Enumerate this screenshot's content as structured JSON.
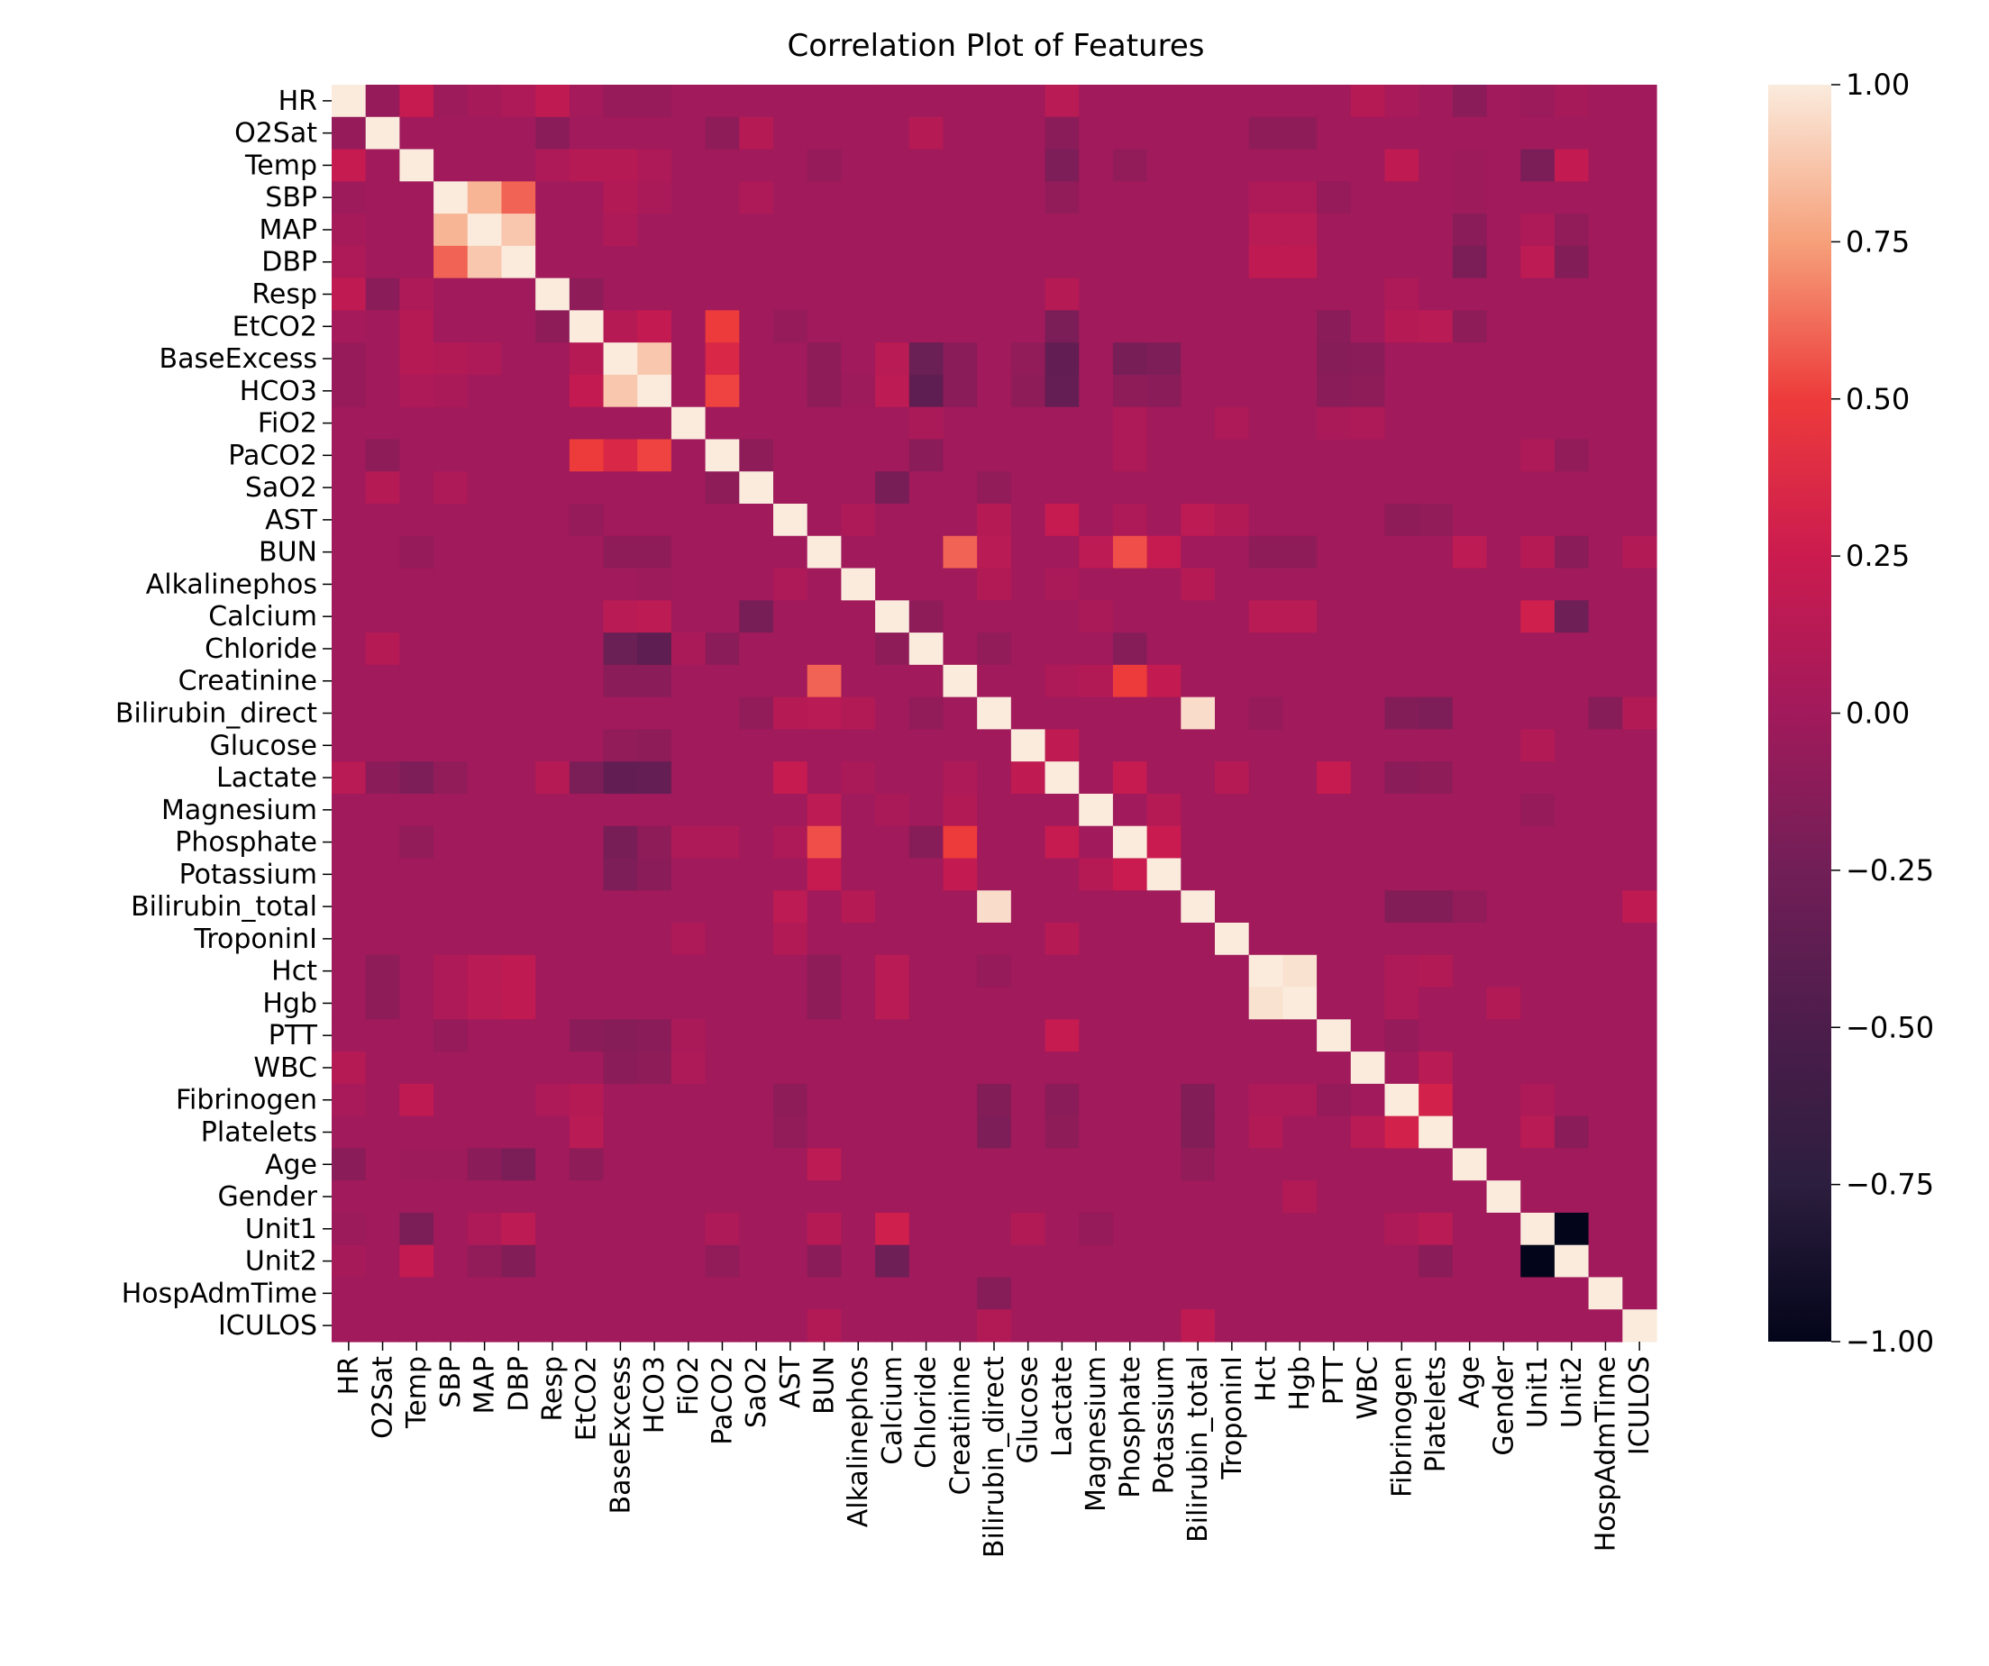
{
  "chart_data": {
    "type": "heatmap",
    "title": "Correlation Plot of Features",
    "labels": [
      "HR",
      "O2Sat",
      "Temp",
      "SBP",
      "MAP",
      "DBP",
      "Resp",
      "EtCO2",
      "BaseExcess",
      "HCO3",
      "FiO2",
      "PaCO2",
      "SaO2",
      "AST",
      "BUN",
      "Alkalinephos",
      "Calcium",
      "Chloride",
      "Creatinine",
      "Bilirubin_direct",
      "Glucose",
      "Lactate",
      "Magnesium",
      "Phosphate",
      "Potassium",
      "Bilirubin_total",
      "TroponinI",
      "Hct",
      "Hgb",
      "PTT",
      "WBC",
      "Fibrinogen",
      "Platelets",
      "Age",
      "Gender",
      "Unit1",
      "Unit2",
      "HospAdmTime",
      "ICULOS"
    ],
    "vmin": -1.0,
    "vmax": 1.0,
    "colorbar_ticks": [
      1.0,
      0.75,
      0.5,
      0.25,
      0.0,
      -0.25,
      -0.5,
      -0.75,
      -1.0
    ],
    "colorbar_tick_labels": [
      "1.00",
      "0.75",
      "0.50",
      "0.25",
      "0.00",
      "−0.25",
      "−0.50",
      "−0.75",
      "−1.00"
    ],
    "colormap": "rocket",
    "default_value": 0.0,
    "correlations": [
      [
        "HR",
        "O2Sat",
        -0.06
      ],
      [
        "HR",
        "Temp",
        0.22
      ],
      [
        "HR",
        "SBP",
        -0.02
      ],
      [
        "HR",
        "MAP",
        0.03
      ],
      [
        "HR",
        "DBP",
        0.08
      ],
      [
        "HR",
        "Resp",
        0.18
      ],
      [
        "HR",
        "EtCO2",
        0.02
      ],
      [
        "HR",
        "BaseExcess",
        -0.05
      ],
      [
        "HR",
        "HCO3",
        -0.05
      ],
      [
        "HR",
        "Lactate",
        0.14
      ],
      [
        "HR",
        "WBC",
        0.12
      ],
      [
        "HR",
        "Age",
        -0.12
      ],
      [
        "HR",
        "Unit1",
        -0.03
      ],
      [
        "HR",
        "Unit2",
        0.03
      ],
      [
        "HR",
        "Fibrinogen",
        0.04
      ],
      [
        "O2Sat",
        "Resp",
        -0.12
      ],
      [
        "O2Sat",
        "SaO2",
        0.12
      ],
      [
        "O2Sat",
        "Chloride",
        0.12
      ],
      [
        "O2Sat",
        "Lactate",
        -0.12
      ],
      [
        "O2Sat",
        "Hct",
        -0.1
      ],
      [
        "O2Sat",
        "Hgb",
        -0.1
      ],
      [
        "O2Sat",
        "PaCO2",
        -0.1
      ],
      [
        "Temp",
        "EtCO2",
        0.12
      ],
      [
        "Temp",
        "BaseExcess",
        0.12
      ],
      [
        "Temp",
        "HCO3",
        0.08
      ],
      [
        "Temp",
        "Lactate",
        -0.18
      ],
      [
        "Temp",
        "Fibrinogen",
        0.18
      ],
      [
        "Temp",
        "Unit1",
        -0.2
      ],
      [
        "Temp",
        "Unit2",
        0.2
      ],
      [
        "Temp",
        "BUN",
        -0.06
      ],
      [
        "Temp",
        "Age",
        -0.02
      ],
      [
        "Temp",
        "Phosphate",
        -0.08
      ],
      [
        "Temp",
        "Resp",
        0.08
      ],
      [
        "SBP",
        "MAP",
        0.82
      ],
      [
        "SBP",
        "DBP",
        0.6
      ],
      [
        "SBP",
        "BaseExcess",
        0.1
      ],
      [
        "SBP",
        "HCO3",
        0.06
      ],
      [
        "SBP",
        "SaO2",
        0.08
      ],
      [
        "SBP",
        "Hct",
        0.08
      ],
      [
        "SBP",
        "Hgb",
        0.08
      ],
      [
        "SBP",
        "Lactate",
        -0.08
      ],
      [
        "SBP",
        "PTT",
        -0.06
      ],
      [
        "SBP",
        "Age",
        -0.02
      ],
      [
        "MAP",
        "DBP",
        0.88
      ],
      [
        "MAP",
        "Hct",
        0.14
      ],
      [
        "MAP",
        "Hgb",
        0.14
      ],
      [
        "MAP",
        "Age",
        -0.12
      ],
      [
        "MAP",
        "Unit1",
        0.08
      ],
      [
        "MAP",
        "Unit2",
        -0.08
      ],
      [
        "MAP",
        "BaseExcess",
        0.08
      ],
      [
        "DBP",
        "Hct",
        0.18
      ],
      [
        "DBP",
        "Hgb",
        0.18
      ],
      [
        "DBP",
        "Age",
        -0.2
      ],
      [
        "DBP",
        "Unit1",
        0.16
      ],
      [
        "DBP",
        "Unit2",
        -0.16
      ],
      [
        "Resp",
        "EtCO2",
        -0.1
      ],
      [
        "Resp",
        "Lactate",
        0.12
      ],
      [
        "Resp",
        "Fibrinogen",
        0.08
      ],
      [
        "EtCO2",
        "BaseExcess",
        0.12
      ],
      [
        "EtCO2",
        "HCO3",
        0.2
      ],
      [
        "EtCO2",
        "PaCO2",
        0.5
      ],
      [
        "EtCO2",
        "Lactate",
        -0.2
      ],
      [
        "EtCO2",
        "Fibrinogen",
        0.12
      ],
      [
        "EtCO2",
        "Platelets",
        0.14
      ],
      [
        "EtCO2",
        "Age",
        -0.1
      ],
      [
        "EtCO2",
        "PTT",
        -0.12
      ],
      [
        "EtCO2",
        "AST",
        -0.06
      ],
      [
        "BaseExcess",
        "HCO3",
        0.88
      ],
      [
        "BaseExcess",
        "PaCO2",
        0.35
      ],
      [
        "BaseExcess",
        "Chloride",
        -0.3
      ],
      [
        "BaseExcess",
        "Lactate",
        -0.35
      ],
      [
        "BaseExcess",
        "Calcium",
        0.14
      ],
      [
        "BaseExcess",
        "Phosphate",
        -0.22
      ],
      [
        "BaseExcess",
        "Potassium",
        -0.18
      ],
      [
        "BaseExcess",
        "BUN",
        -0.1
      ],
      [
        "BaseExcess",
        "PTT",
        -0.14
      ],
      [
        "BaseExcess",
        "WBC",
        -0.12
      ],
      [
        "BaseExcess",
        "Creatinine",
        -0.12
      ],
      [
        "BaseExcess",
        "Glucose",
        -0.08
      ],
      [
        "HCO3",
        "PaCO2",
        0.52
      ],
      [
        "HCO3",
        "Chloride",
        -0.38
      ],
      [
        "HCO3",
        "Lactate",
        -0.34
      ],
      [
        "HCO3",
        "Calcium",
        0.16
      ],
      [
        "HCO3",
        "Creatinine",
        -0.12
      ],
      [
        "HCO3",
        "BUN",
        -0.1
      ],
      [
        "HCO3",
        "Potassium",
        -0.12
      ],
      [
        "HCO3",
        "PTT",
        -0.12
      ],
      [
        "HCO3",
        "Phosphate",
        -0.1
      ],
      [
        "HCO3",
        "WBC",
        -0.1
      ],
      [
        "HCO3",
        "Glucose",
        -0.1
      ],
      [
        "HCO3",
        "Alkalinephos",
        -0.02
      ],
      [
        "FiO2",
        "TroponinI",
        0.08
      ],
      [
        "FiO2",
        "Chloride",
        0.06
      ],
      [
        "FiO2",
        "Phosphate",
        0.08
      ],
      [
        "FiO2",
        "PTT",
        0.06
      ],
      [
        "FiO2",
        "WBC",
        0.08
      ],
      [
        "PaCO2",
        "SaO2",
        -0.1
      ],
      [
        "PaCO2",
        "Chloride",
        -0.12
      ],
      [
        "PaCO2",
        "Phosphate",
        0.08
      ],
      [
        "PaCO2",
        "Unit1",
        0.08
      ],
      [
        "PaCO2",
        "Unit2",
        -0.08
      ],
      [
        "SaO2",
        "Calcium",
        -0.22
      ],
      [
        "SaO2",
        "Bilirubin_direct",
        -0.08
      ],
      [
        "AST",
        "Lactate",
        0.22
      ],
      [
        "AST",
        "Bilirubin_direct",
        0.12
      ],
      [
        "AST",
        "Bilirubin_total",
        0.16
      ],
      [
        "AST",
        "TroponinI",
        0.1
      ],
      [
        "AST",
        "Fibrinogen",
        -0.1
      ],
      [
        "AST",
        "Platelets",
        -0.08
      ],
      [
        "AST",
        "Alkalinephos",
        0.08
      ],
      [
        "AST",
        "Phosphate",
        0.08
      ],
      [
        "BUN",
        "Creatinine",
        0.6
      ],
      [
        "BUN",
        "Phosphate",
        0.55
      ],
      [
        "BUN",
        "Potassium",
        0.22
      ],
      [
        "BUN",
        "Magnesium",
        0.16
      ],
      [
        "BUN",
        "Bilirubin_direct",
        0.14
      ],
      [
        "BUN",
        "Age",
        0.16
      ],
      [
        "BUN",
        "Unit1",
        0.12
      ],
      [
        "BUN",
        "Unit2",
        -0.12
      ],
      [
        "BUN",
        "Hct",
        -0.1
      ],
      [
        "BUN",
        "Hgb",
        -0.1
      ],
      [
        "BUN",
        "ICULOS",
        0.1
      ],
      [
        "Alkalinephos",
        "Bilirubin_direct",
        0.1
      ],
      [
        "Alkalinephos",
        "Bilirubin_total",
        0.12
      ],
      [
        "Alkalinephos",
        "Lactate",
        0.06
      ],
      [
        "Calcium",
        "Hct",
        0.14
      ],
      [
        "Calcium",
        "Hgb",
        0.14
      ],
      [
        "Calcium",
        "Unit1",
        0.28
      ],
      [
        "Calcium",
        "Unit2",
        -0.28
      ],
      [
        "Calcium",
        "Chloride",
        -0.1
      ],
      [
        "Calcium",
        "Magnesium",
        0.06
      ],
      [
        "Chloride",
        "Phosphate",
        -0.14
      ],
      [
        "Chloride",
        "Bilirubin_direct",
        -0.08
      ],
      [
        "Creatinine",
        "Phosphate",
        0.5
      ],
      [
        "Creatinine",
        "Potassium",
        0.2
      ],
      [
        "Creatinine",
        "Lactate",
        0.08
      ],
      [
        "Creatinine",
        "Magnesium",
        0.1
      ],
      [
        "Bilirubin_direct",
        "Bilirubin_total",
        0.95
      ],
      [
        "Bilirubin_direct",
        "Hct",
        -0.06
      ],
      [
        "Bilirubin_direct",
        "Fibrinogen",
        -0.16
      ],
      [
        "Bilirubin_direct",
        "Platelets",
        -0.18
      ],
      [
        "Bilirubin_direct",
        "HospAdmTime",
        -0.14
      ],
      [
        "Bilirubin_direct",
        "ICULOS",
        0.1
      ],
      [
        "Glucose",
        "Lactate",
        0.18
      ],
      [
        "Glucose",
        "Unit1",
        0.1
      ],
      [
        "Lactate",
        "Phosphate",
        0.22
      ],
      [
        "Lactate",
        "PTT",
        0.22
      ],
      [
        "Lactate",
        "TroponinI",
        0.12
      ],
      [
        "Lactate",
        "Fibrinogen",
        -0.12
      ],
      [
        "Lactate",
        "Platelets",
        -0.1
      ],
      [
        "Magnesium",
        "Potassium",
        0.12
      ],
      [
        "Magnesium",
        "Unit1",
        -0.06
      ],
      [
        "Phosphate",
        "Potassium",
        0.24
      ],
      [
        "Bilirubin_total",
        "Fibrinogen",
        -0.16
      ],
      [
        "Bilirubin_total",
        "Platelets",
        -0.16
      ],
      [
        "Bilirubin_total",
        "ICULOS",
        0.18
      ],
      [
        "Bilirubin_total",
        "Age",
        -0.08
      ],
      [
        "Hct",
        "Hgb",
        0.97
      ],
      [
        "Hct",
        "Fibrinogen",
        0.08
      ],
      [
        "Hct",
        "Platelets",
        0.1
      ],
      [
        "Hgb",
        "Fibrinogen",
        0.08
      ],
      [
        "Hgb",
        "Gender",
        0.1
      ],
      [
        "PTT",
        "Fibrinogen",
        -0.06
      ],
      [
        "WBC",
        "Platelets",
        0.14
      ],
      [
        "Fibrinogen",
        "Platelets",
        0.3
      ],
      [
        "Fibrinogen",
        "Unit1",
        0.08
      ],
      [
        "Platelets",
        "Unit1",
        0.14
      ],
      [
        "Platelets",
        "Unit2",
        -0.12
      ],
      [
        "Unit1",
        "Unit2",
        -1.0
      ]
    ]
  }
}
